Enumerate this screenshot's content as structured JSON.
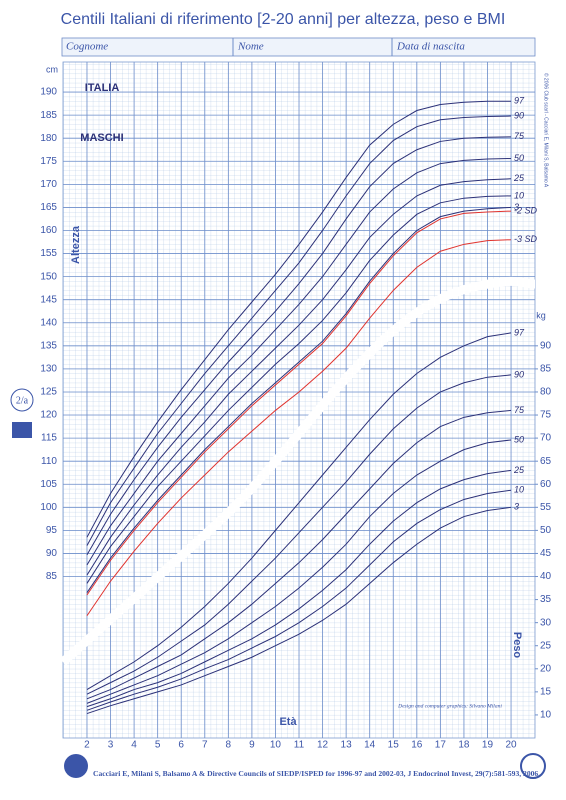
{
  "header": {
    "title": "Centili Italiani di riferimento [2-20 anni] per altezza, peso e BMI",
    "fields": [
      "Cognome",
      "Nome",
      "Data di nascita"
    ]
  },
  "side": {
    "page_code": "2/a",
    "copyright": "© 2006 Club scarl - Cacciari E, Milani S, Balsamo A"
  },
  "chart_data": [
    {
      "type": "line",
      "y_label": "Altezza",
      "unit": "cm",
      "x_label": "Età",
      "annotations": [
        "ITALIA",
        "MASCHI"
      ],
      "x": [
        2,
        3,
        4,
        5,
        6,
        7,
        8,
        9,
        10,
        11,
        12,
        13,
        14,
        15,
        16,
        17,
        18,
        19,
        20
      ],
      "xlim": [
        1,
        21
      ],
      "xticks": [
        2,
        3,
        4,
        5,
        6,
        7,
        8,
        9,
        10,
        11,
        12,
        13,
        14,
        15,
        16,
        17,
        18,
        19,
        20
      ],
      "ylim": [
        50,
        195
      ],
      "yticks": [
        85,
        90,
        95,
        100,
        105,
        110,
        115,
        120,
        125,
        130,
        135,
        140,
        145,
        150,
        155,
        160,
        165,
        170,
        175,
        180,
        185,
        190
      ],
      "grid": true,
      "series": [
        {
          "name": "97",
          "color": "#2c3178",
          "values": [
            93.5,
            103,
            111,
            118.5,
            125.5,
            132,
            138.5,
            144.5,
            150.5,
            157,
            164,
            171.5,
            178.5,
            183,
            186,
            187.3,
            187.8,
            188,
            188
          ]
        },
        {
          "name": "90",
          "color": "#2c3178",
          "values": [
            91.7,
            101,
            108.5,
            116,
            122.5,
            129,
            135,
            141,
            147,
            153,
            160,
            167.5,
            174.5,
            179.5,
            182.5,
            184,
            184.5,
            184.7,
            184.8
          ]
        },
        {
          "name": "75",
          "color": "#2c3178",
          "values": [
            89.7,
            98.5,
            106,
            113,
            119.5,
            125.5,
            131.5,
            137,
            142.5,
            148.5,
            155,
            162.5,
            169.5,
            174.5,
            177.5,
            179.3,
            180,
            180.2,
            180.3
          ]
        },
        {
          "name": "50",
          "color": "#2c3178",
          "values": [
            87.5,
            96,
            103,
            110,
            116,
            122,
            128,
            133,
            138.5,
            144,
            150,
            157,
            164,
            169,
            172.5,
            174.5,
            175.2,
            175.5,
            175.6
          ]
        },
        {
          "name": "25",
          "color": "#2c3178",
          "values": [
            85.3,
            93.5,
            100.5,
            107,
            113,
            118.5,
            124.5,
            129.5,
            134.5,
            139.5,
            145,
            151.5,
            158.5,
            163.5,
            167.5,
            169.8,
            170.6,
            171,
            171.2
          ]
        },
        {
          "name": "10",
          "color": "#2c3178",
          "values": [
            83.5,
            91.5,
            98,
            104.5,
            110,
            115.5,
            121,
            126,
            131,
            135.5,
            140.5,
            146.5,
            153.5,
            159,
            163.5,
            166,
            167,
            167.4,
            167.5
          ]
        },
        {
          "name": "3",
          "color": "#2c3178",
          "values": [
            81.5,
            89,
            95.5,
            101.5,
            107,
            112.5,
            117.5,
            122.5,
            127,
            131.5,
            136,
            142,
            149,
            155,
            160,
            163,
            164.2,
            164.7,
            165
          ]
        },
        {
          "name": "-2 SD",
          "color": "#e0332e",
          "values": [
            81,
            88.5,
            95,
            101,
            106.5,
            112,
            117,
            122,
            126.5,
            131,
            135.5,
            141.5,
            148.5,
            154.5,
            159.5,
            162.5,
            163.7,
            164,
            164.2
          ]
        },
        {
          "name": "-3 SD",
          "color": "#e0332e",
          "values": [
            76.5,
            84,
            90.5,
            96.5,
            102,
            107,
            112,
            116.5,
            121,
            125,
            129.5,
            134.5,
            141,
            147,
            152,
            155.5,
            157,
            157.8,
            158
          ]
        }
      ]
    },
    {
      "type": "line",
      "y_label": "Peso",
      "unit": "kg",
      "x": [
        2,
        3,
        4,
        5,
        6,
        7,
        8,
        9,
        10,
        11,
        12,
        13,
        14,
        15,
        16,
        17,
        18,
        19,
        20
      ],
      "xlim": [
        1,
        21
      ],
      "ylim": [
        5,
        150
      ],
      "yticks": [
        10,
        15,
        20,
        25,
        30,
        35,
        40,
        45,
        50,
        55,
        60,
        65,
        70,
        75,
        80,
        85,
        90
      ],
      "series": [
        {
          "name": "97",
          "color": "#2c3178",
          "values": [
            15.5,
            18.5,
            21.5,
            25,
            29,
            33.5,
            38.5,
            44,
            50,
            56,
            62,
            68,
            74,
            79.5,
            84,
            87.5,
            90,
            92,
            92.8
          ]
        },
        {
          "name": "90",
          "color": "#2c3178",
          "values": [
            14.5,
            17,
            19.5,
            22.5,
            26,
            29.5,
            34,
            39,
            44,
            49.5,
            55,
            60.5,
            66.5,
            72,
            76.5,
            80,
            82,
            83.2,
            83.7
          ]
        },
        {
          "name": "75",
          "color": "#2c3178",
          "values": [
            13.5,
            15.5,
            18,
            20.5,
            23,
            26.5,
            30,
            34,
            38.5,
            43,
            48,
            53.5,
            59,
            64.5,
            69,
            72.5,
            74.5,
            75.5,
            76
          ]
        },
        {
          "name": "50",
          "color": "#2c3178",
          "values": [
            12.5,
            14.5,
            16.5,
            18.5,
            21,
            23.5,
            26.5,
            30,
            33.5,
            37.5,
            42,
            47,
            53,
            58,
            62,
            65,
            67.5,
            69,
            69.6
          ]
        },
        {
          "name": "25",
          "color": "#2c3178",
          "values": [
            11.8,
            13.5,
            15.5,
            17,
            19,
            21.5,
            24,
            26.5,
            29.5,
            33,
            37,
            41.5,
            47,
            52,
            56,
            59,
            61,
            62.3,
            63
          ]
        },
        {
          "name": "10",
          "color": "#2c3178",
          "values": [
            11,
            12.8,
            14.5,
            16,
            17.8,
            20,
            22,
            24.5,
            27,
            30,
            33.5,
            37.5,
            42.5,
            47.5,
            51.5,
            54.5,
            56.7,
            58,
            58.7
          ]
        },
        {
          "name": "3",
          "color": "#2c3178",
          "values": [
            10.3,
            12,
            13.5,
            15,
            16.5,
            18.5,
            20.5,
            22.5,
            25,
            27.5,
            30.5,
            34,
            38.5,
            43,
            47,
            50.5,
            53,
            54.3,
            55
          ]
        }
      ]
    }
  ],
  "credits": {
    "design": "Design and computer graphics: Silvano Milani",
    "reference": "Cacciari E, Milani S, Balsamo A & Directive Councils of SIEDP/ISPED for 1996-97 and 2002-03, J Endocrinol Invest, 29(7):581-593, 2006."
  }
}
